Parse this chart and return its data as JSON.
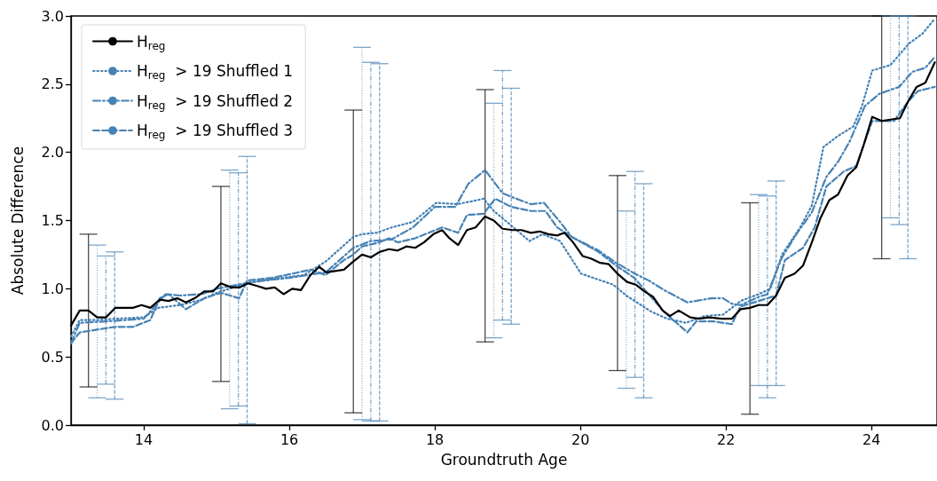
{
  "chart_data": {
    "type": "line",
    "xlabel": "Groundtruth Age",
    "ylabel": "Absolute Difference",
    "xlim": [
      13,
      24.9
    ],
    "ylim": [
      0,
      3
    ],
    "xticks": [
      14,
      16,
      18,
      20,
      22,
      24
    ],
    "yticks": [
      {
        "value": 0,
        "label": "0.0"
      },
      {
        "value": 0.5,
        "label": "0.5"
      },
      {
        "value": 1,
        "label": "1.0"
      },
      {
        "value": 1.5,
        "label": "1.5"
      },
      {
        "value": 2,
        "label": "2.0"
      },
      {
        "value": 2.5,
        "label": "2.5"
      },
      {
        "value": 3,
        "label": "3.0"
      }
    ],
    "grid": false,
    "legend": "top left",
    "marker": "none",
    "series": [
      {
        "name": "H$_{reg}$",
        "color": "#000000",
        "line_style": "solid",
        "x": [
          13.0,
          13.12,
          13.24,
          13.36,
          13.48,
          13.61,
          13.85,
          13.97,
          14.09,
          14.22,
          14.34,
          14.46,
          14.58,
          14.7,
          14.83,
          14.95,
          15.06,
          15.2,
          15.32,
          15.43,
          15.56,
          15.68,
          15.8,
          15.92,
          16.04,
          16.16,
          16.29,
          16.41,
          16.51,
          16.63,
          16.75,
          16.88,
          17.0,
          17.12,
          17.24,
          17.37,
          17.49,
          17.61,
          17.73,
          17.85,
          17.98,
          18.1,
          18.2,
          18.32,
          18.44,
          18.56,
          18.69,
          18.81,
          18.93,
          19.07,
          19.19,
          19.32,
          19.44,
          19.56,
          19.68,
          19.78,
          19.9,
          20.03,
          20.15,
          20.27,
          20.39,
          20.51,
          20.64,
          20.76,
          20.88,
          21.0,
          21.13,
          21.23,
          21.35,
          21.51,
          21.63,
          21.77,
          21.94,
          22.08,
          22.2,
          22.33,
          22.45,
          22.57,
          22.69,
          22.81,
          22.94,
          23.06,
          23.18,
          23.3,
          23.42,
          23.54,
          23.67,
          23.79,
          23.89,
          24.01,
          24.14,
          24.26,
          24.39,
          24.5,
          24.62,
          24.74,
          24.87
        ],
        "values": [
          0.73,
          0.84,
          0.84,
          0.79,
          0.79,
          0.86,
          0.86,
          0.88,
          0.86,
          0.92,
          0.91,
          0.93,
          0.9,
          0.93,
          0.98,
          0.98,
          1.04,
          1.01,
          1.01,
          1.04,
          1.02,
          1.0,
          1.01,
          0.96,
          1.0,
          0.99,
          1.1,
          1.16,
          1.12,
          1.13,
          1.14,
          1.2,
          1.25,
          1.23,
          1.27,
          1.29,
          1.28,
          1.31,
          1.3,
          1.34,
          1.4,
          1.43,
          1.37,
          1.32,
          1.43,
          1.45,
          1.53,
          1.5,
          1.44,
          1.43,
          1.43,
          1.41,
          1.42,
          1.4,
          1.39,
          1.41,
          1.34,
          1.24,
          1.22,
          1.19,
          1.18,
          1.11,
          1.05,
          1.03,
          0.98,
          0.94,
          0.84,
          0.8,
          0.84,
          0.79,
          0.78,
          0.79,
          0.78,
          0.78,
          0.85,
          0.86,
          0.88,
          0.88,
          0.95,
          1.08,
          1.11,
          1.17,
          1.34,
          1.52,
          1.65,
          1.69,
          1.83,
          1.89,
          2.05,
          2.26,
          2.23,
          2.24,
          2.25,
          2.37,
          2.48,
          2.51,
          2.66
        ],
        "errors": [
          null,
          null,
          [
            0.28,
            1.4
          ],
          null,
          null,
          null,
          null,
          null,
          null,
          null,
          null,
          null,
          null,
          null,
          null,
          null,
          [
            0.32,
            1.75
          ],
          null,
          null,
          null,
          null,
          null,
          null,
          null,
          null,
          null,
          null,
          null,
          null,
          null,
          null,
          [
            0.09,
            2.31
          ],
          null,
          null,
          null,
          null,
          null,
          null,
          null,
          null,
          null,
          null,
          null,
          null,
          null,
          null,
          [
            0.61,
            2.46
          ],
          null,
          null,
          null,
          null,
          null,
          null,
          null,
          null,
          null,
          null,
          null,
          null,
          null,
          null,
          [
            0.4,
            1.83
          ],
          null,
          null,
          null,
          null,
          null,
          null,
          null,
          null,
          null,
          null,
          null,
          null,
          null,
          [
            0.08,
            1.63
          ],
          null,
          null,
          null,
          null,
          null,
          null,
          null,
          null,
          null,
          null,
          null,
          null,
          null,
          null,
          [
            1.22,
            3.0
          ],
          null,
          null,
          null,
          null,
          null,
          null
        ]
      },
      {
        "name": "H$_{reg}$  > 19 Shuffled 1",
        "color": "#4682b4",
        "line_style": "dotted",
        "x": [
          13.0,
          13.12,
          13.36,
          13.6,
          14.0,
          14.2,
          14.5,
          14.8,
          15.0,
          15.18,
          15.3,
          15.6,
          15.9,
          16.2,
          16.5,
          16.88,
          17.0,
          17.2,
          17.41,
          17.7,
          18.02,
          18.3,
          18.5,
          18.67,
          18.81,
          18.99,
          19.3,
          19.48,
          19.72,
          20.01,
          20.45,
          20.63,
          20.98,
          21.19,
          21.45,
          21.71,
          21.96,
          22.2,
          22.45,
          22.61,
          22.77,
          23.02,
          23.18,
          23.34,
          23.54,
          23.75,
          23.87,
          24.01,
          24.26,
          24.52,
          24.7,
          24.87
        ],
        "values": [
          0.65,
          0.77,
          0.77,
          0.78,
          0.79,
          0.86,
          0.88,
          0.92,
          0.97,
          1.0,
          1.02,
          1.06,
          1.08,
          1.1,
          1.2,
          1.38,
          1.4,
          1.41,
          1.45,
          1.49,
          1.63,
          1.62,
          1.64,
          1.66,
          1.57,
          1.49,
          1.35,
          1.4,
          1.35,
          1.11,
          1.03,
          0.95,
          0.83,
          0.78,
          0.75,
          0.8,
          0.81,
          0.91,
          0.96,
          1.0,
          1.25,
          1.45,
          1.61,
          2.04,
          2.12,
          2.19,
          2.34,
          2.6,
          2.64,
          2.8,
          2.87,
          2.98
        ],
        "errors": [
          null,
          null,
          [
            0.2,
            1.32
          ],
          null,
          null,
          null,
          null,
          null,
          null,
          [
            0.12,
            1.87
          ],
          null,
          null,
          null,
          null,
          null,
          null,
          [
            0.04,
            2.77
          ],
          null,
          null,
          null,
          null,
          null,
          null,
          null,
          [
            0.64,
            2.36
          ],
          null,
          null,
          null,
          null,
          null,
          null,
          [
            0.27,
            1.57
          ],
          null,
          null,
          null,
          null,
          null,
          null,
          [
            0.29,
            1.69
          ],
          null,
          null,
          null,
          null,
          null,
          null,
          null,
          null,
          null,
          [
            1.52,
            3.0
          ],
          null,
          null,
          null
        ]
      },
      {
        "name": "H$_{reg}$  > 19 Shuffled 2",
        "color": "#4682b4",
        "line_style": "dashdot",
        "x": [
          13.0,
          13.12,
          13.48,
          14.0,
          14.3,
          14.5,
          14.8,
          15.0,
          15.3,
          15.5,
          16.0,
          16.5,
          16.88,
          17.12,
          17.4,
          17.7,
          18.0,
          18.28,
          18.46,
          18.69,
          18.93,
          19.07,
          19.32,
          19.5,
          19.72,
          19.88,
          20.25,
          20.49,
          20.75,
          20.94,
          21.15,
          21.47,
          21.8,
          21.96,
          22.08,
          22.2,
          22.45,
          22.57,
          22.77,
          22.98,
          23.18,
          23.38,
          23.54,
          23.7,
          23.91,
          24.11,
          24.38,
          24.56,
          24.74,
          24.87
        ],
        "values": [
          0.6,
          0.75,
          0.76,
          0.78,
          0.96,
          0.95,
          0.96,
          1.0,
          1.03,
          1.05,
          1.08,
          1.12,
          1.3,
          1.35,
          1.36,
          1.45,
          1.6,
          1.6,
          1.77,
          1.87,
          1.7,
          1.67,
          1.62,
          1.63,
          1.49,
          1.38,
          1.28,
          1.19,
          1.11,
          1.06,
          0.99,
          0.9,
          0.93,
          0.93,
          0.89,
          0.88,
          0.94,
          0.96,
          1.23,
          1.41,
          1.56,
          1.82,
          1.93,
          2.08,
          2.34,
          2.43,
          2.48,
          2.59,
          2.62,
          2.7
        ],
        "errors": [
          null,
          null,
          [
            0.3,
            1.24
          ],
          null,
          null,
          null,
          null,
          null,
          [
            0.14,
            1.85
          ],
          null,
          null,
          null,
          null,
          [
            0.03,
            2.66
          ],
          null,
          null,
          null,
          null,
          null,
          null,
          [
            0.77,
            2.6
          ],
          null,
          null,
          null,
          null,
          null,
          null,
          null,
          [
            0.35,
            1.86
          ],
          null,
          null,
          null,
          null,
          null,
          null,
          null,
          null,
          [
            0.2,
            1.68
          ],
          null,
          null,
          null,
          null,
          null,
          null,
          null,
          null,
          [
            1.47,
            3.0
          ],
          null,
          null,
          null
        ]
      },
      {
        "name": "H$_{reg}$  > 19 Shuffled 3",
        "color": "#4682b4",
        "line_style": "dashed",
        "x": [
          13.0,
          13.12,
          13.36,
          13.6,
          13.85,
          14.09,
          14.22,
          14.34,
          14.58,
          14.83,
          15.06,
          15.31,
          15.42,
          15.76,
          16.04,
          16.29,
          16.5,
          16.75,
          16.88,
          17.0,
          17.24,
          17.37,
          17.49,
          17.73,
          18.1,
          18.32,
          18.44,
          18.67,
          18.83,
          19.05,
          19.32,
          19.52,
          19.68,
          19.88,
          20.25,
          20.49,
          20.74,
          20.87,
          21.15,
          21.47,
          21.59,
          21.84,
          22.08,
          22.2,
          22.45,
          22.69,
          22.81,
          23.06,
          23.22,
          23.38,
          23.62,
          23.79,
          24.01,
          24.31,
          24.5,
          24.64,
          24.87
        ],
        "values": [
          0.6,
          0.68,
          0.7,
          0.72,
          0.72,
          0.77,
          0.93,
          0.96,
          0.85,
          0.93,
          0.97,
          0.93,
          1.06,
          1.08,
          1.11,
          1.14,
          1.1,
          1.21,
          1.25,
          1.31,
          1.34,
          1.37,
          1.34,
          1.37,
          1.45,
          1.41,
          1.54,
          1.55,
          1.66,
          1.6,
          1.57,
          1.57,
          1.45,
          1.38,
          1.27,
          1.17,
          1.08,
          1.0,
          0.83,
          0.68,
          0.76,
          0.76,
          0.74,
          0.87,
          0.91,
          0.95,
          1.21,
          1.3,
          1.45,
          1.75,
          1.86,
          1.9,
          2.23,
          2.23,
          2.37,
          2.45,
          2.48
        ],
        "errors": [
          null,
          null,
          null,
          [
            0.19,
            1.27
          ],
          null,
          null,
          null,
          null,
          null,
          null,
          null,
          null,
          [
            0.01,
            1.97
          ],
          null,
          null,
          null,
          null,
          null,
          null,
          null,
          [
            0.03,
            2.65
          ],
          null,
          null,
          null,
          null,
          null,
          null,
          null,
          null,
          [
            0.74,
            2.47
          ],
          null,
          null,
          null,
          null,
          null,
          null,
          null,
          [
            0.2,
            1.77
          ],
          null,
          null,
          null,
          null,
          null,
          null,
          null,
          [
            0.29,
            1.79
          ],
          null,
          null,
          null,
          null,
          null,
          null,
          null,
          null,
          [
            1.22,
            3.0
          ],
          null,
          null
        ]
      }
    ]
  }
}
